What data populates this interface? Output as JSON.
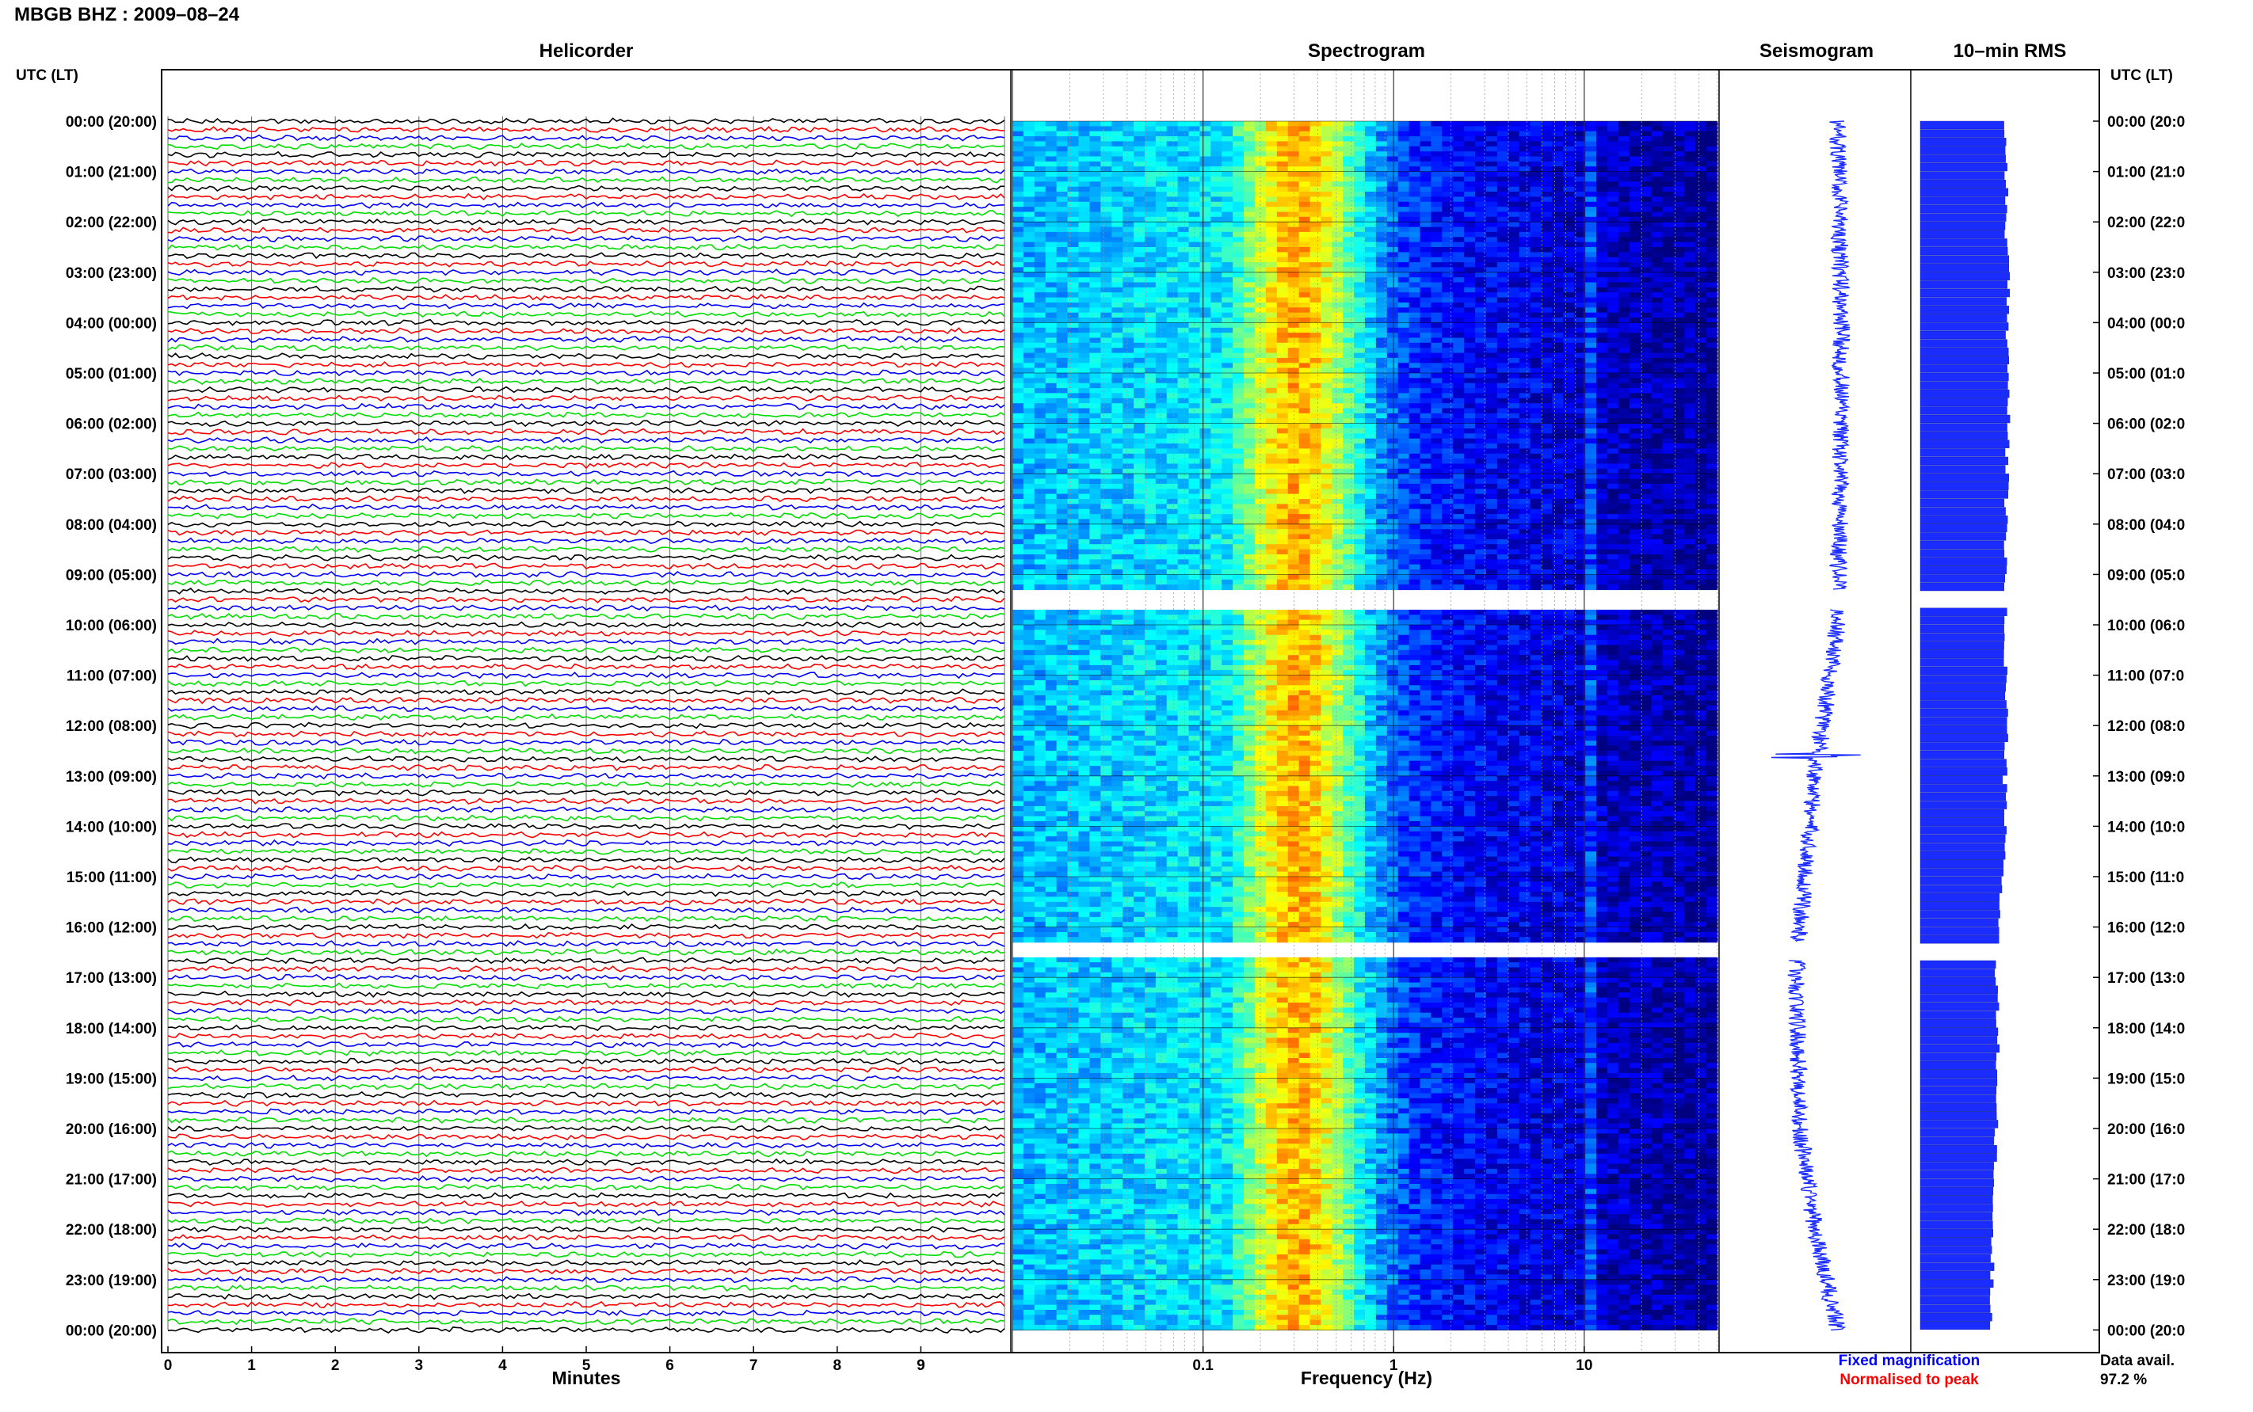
{
  "title": "MBGB BHZ : 2009–08–24",
  "time_axis_label": "UTC (LT)",
  "panels": {
    "helicorder": "Helicorder",
    "spectrogram": "Spectrogram",
    "seismogram": "Seismogram",
    "rms": "10–min RMS"
  },
  "colors": {
    "trace_cycle": [
      "#000000",
      "#ff0000",
      "#0000ff",
      "#00dd00"
    ],
    "seismogram": "#1a2cff",
    "rms": "#1a2cff",
    "fixed_magnification": "#0000ff",
    "normalised_to_peak": "#ff0000"
  },
  "legend": {
    "fixed_magnification": "Fixed magnification",
    "normalised_to_peak": "Normalised to peak"
  },
  "data_availability": {
    "label": "Data avail.",
    "value": "97.2 %"
  },
  "chart_data": [
    {
      "type": "line",
      "name": "helicorder",
      "title": "Helicorder",
      "xlabel": "Minutes",
      "ylabel": "UTC (LT)",
      "x_ticks": [
        0,
        1,
        2,
        3,
        4,
        5,
        6,
        7,
        8,
        9
      ],
      "xlim": [
        0,
        10
      ],
      "ylim_hours": [
        0,
        24
      ],
      "traces_per_hour": 6,
      "trace_minutes": 10,
      "grid": true,
      "y_tick_labels": [
        "00:00 (20:00)",
        "01:00 (21:00)",
        "02:00 (22:00)",
        "03:00 (23:00)",
        "04:00 (00:00)",
        "05:00 (01:00)",
        "06:00 (02:00)",
        "07:00 (03:00)",
        "08:00 (04:00)",
        "09:00 (05:00)",
        "10:00 (06:00)",
        "11:00 (07:00)",
        "12:00 (08:00)",
        "13:00 (09:00)",
        "14:00 (10:00)",
        "15:00 (11:00)",
        "16:00 (12:00)",
        "17:00 (13:00)",
        "18:00 (14:00)",
        "19:00 (15:00)",
        "20:00 (16:00)",
        "21:00 (17:00)",
        "22:00 (18:00)",
        "23:00 (19:00)",
        "00:00 (20:00)"
      ],
      "right_tick_labels": [
        "00:00 (20:0",
        "01:00 (21:0",
        "02:00 (22:0",
        "03:00 (23:0",
        "04:00 (00:0",
        "05:00 (01:0",
        "06:00 (02:0",
        "07:00 (03:0",
        "08:00 (04:0",
        "09:00 (05:0",
        "10:00 (06:0",
        "11:00 (07:0",
        "12:00 (08:0",
        "13:00 (09:0",
        "14:00 (10:0",
        "15:00 (11:0",
        "16:00 (12:0",
        "17:00 (13:0",
        "18:00 (14:0",
        "19:00 (15:0",
        "20:00 (16:0",
        "21:00 (17:0",
        "22:00 (18:0",
        "23:00 (19:0",
        "00:00 (20:0"
      ]
    },
    {
      "type": "heatmap",
      "name": "spectrogram",
      "title": "Spectrogram",
      "xlabel": "Frequency (Hz)",
      "x_scale": "log",
      "xlim": [
        0.01,
        50
      ],
      "x_tick_labels": [
        {
          "value": 0.1,
          "label": "0.1"
        },
        {
          "value": 1,
          "label": "1"
        },
        {
          "value": 10,
          "label": "10"
        }
      ],
      "peak_band_hz": [
        0.2,
        0.5
      ],
      "narrow_band_hz": 10.5,
      "data_gaps_hours": [
        [
          9.3,
          9.7
        ],
        [
          16.3,
          16.65
        ]
      ]
    },
    {
      "type": "line",
      "name": "seismogram",
      "title": "Seismogram",
      "data_gaps_hours": [
        [
          9.3,
          9.7
        ],
        [
          16.3,
          16.65
        ]
      ],
      "offset_by_hour": [
        {
          "h": 0,
          "v": 0.62
        },
        {
          "h": 4,
          "v": 0.64
        },
        {
          "h": 8,
          "v": 0.63
        },
        {
          "h": 10,
          "v": 0.62
        },
        {
          "h": 13,
          "v": 0.5
        },
        {
          "h": 16,
          "v": 0.42
        },
        {
          "h": 17,
          "v": 0.4
        },
        {
          "h": 20,
          "v": 0.42
        },
        {
          "h": 22,
          "v": 0.5
        },
        {
          "h": 24,
          "v": 0.62
        }
      ],
      "events": [
        {
          "hour": 12.6,
          "amplitude": 0.18
        }
      ]
    },
    {
      "type": "bar",
      "name": "rms",
      "title": "10–min RMS",
      "orientation": "horizontal",
      "bins_per_hour": 6,
      "data_gaps_hours": [
        [
          9.3,
          9.7
        ],
        [
          16.3,
          16.65
        ]
      ],
      "relative_level_by_hour": [
        0.92,
        0.94,
        0.93,
        0.95,
        0.95,
        0.96,
        0.95,
        0.94,
        0.93,
        0.92,
        0.92,
        0.93,
        0.94,
        0.92,
        0.92,
        0.9,
        0.85,
        0.82,
        0.84,
        0.84,
        0.82,
        0.8,
        0.78,
        0.78,
        0.78
      ]
    }
  ]
}
